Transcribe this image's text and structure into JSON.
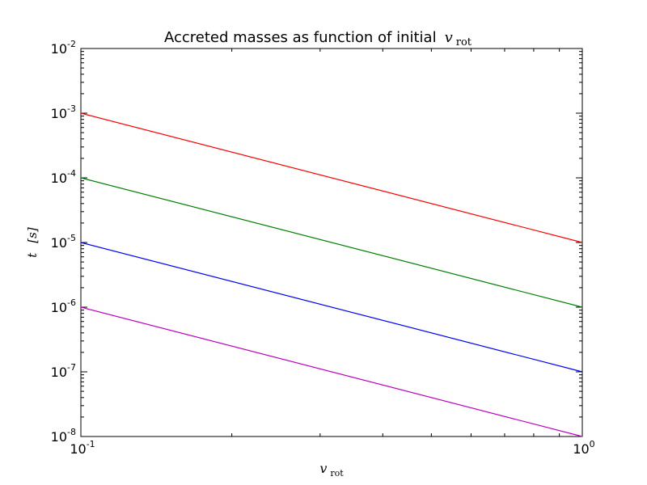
{
  "chart_data": {
    "type": "line",
    "title": "Accreted masses as function of initial",
    "title_math": {
      "symbol": "v",
      "subscript": "rot"
    },
    "xlabel": {
      "symbol": "v",
      "subscript": "rot"
    },
    "ylabel": {
      "symbol": "t",
      "unit": "[s]"
    },
    "xscale": "log",
    "yscale": "log",
    "xlim": [
      0.1,
      1
    ],
    "ylim": [
      1e-08,
      0.01
    ],
    "x_ticks": [
      {
        "value": 0.1,
        "base": "10",
        "exp": "-1"
      },
      {
        "value": 1,
        "base": "10",
        "exp": "0"
      }
    ],
    "y_ticks": [
      {
        "value": 1e-08,
        "base": "10",
        "exp": "-8"
      },
      {
        "value": 1e-07,
        "base": "10",
        "exp": "-7"
      },
      {
        "value": 1e-06,
        "base": "10",
        "exp": "-6"
      },
      {
        "value": 1e-05,
        "base": "10",
        "exp": "-5"
      },
      {
        "value": 0.0001,
        "base": "10",
        "exp": "-4"
      },
      {
        "value": 0.001,
        "base": "10",
        "exp": "-3"
      },
      {
        "value": 0.01,
        "base": "10",
        "exp": "-2"
      }
    ],
    "x_minor_ticks": [
      0.2,
      0.3,
      0.4,
      0.5,
      0.6,
      0.7,
      0.8,
      0.9
    ],
    "grid": false,
    "legend": "none",
    "series": [
      {
        "x": [
          0.1,
          1
        ],
        "y": [
          0.001,
          1e-05
        ],
        "color": "#ff0000"
      },
      {
        "x": [
          0.1,
          1
        ],
        "y": [
          0.0001,
          1e-06
        ],
        "color": "#008000"
      },
      {
        "x": [
          0.1,
          1
        ],
        "y": [
          1e-05,
          1e-07
        ],
        "color": "#0000ff"
      },
      {
        "x": [
          0.1,
          1
        ],
        "y": [
          1e-06,
          1e-08
        ],
        "color": "#bf00bf"
      }
    ]
  }
}
